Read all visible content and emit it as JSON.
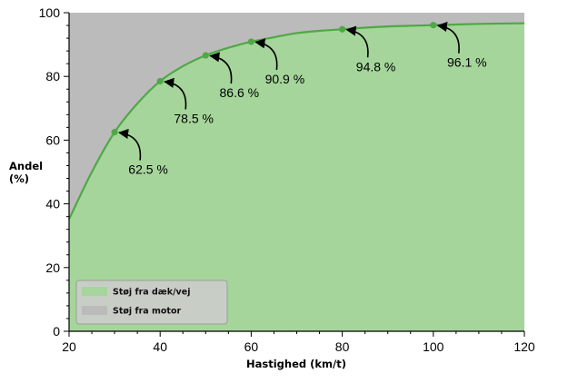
{
  "chart_data": {
    "type": "area",
    "title": "",
    "xlabel": "Hastighed (km/t)",
    "ylabel_lines": [
      "Andel",
      "(%)"
    ],
    "xlim": [
      20,
      120
    ],
    "ylim": [
      0,
      100
    ],
    "x_ticks": [
      20,
      40,
      60,
      80,
      100,
      120
    ],
    "y_ticks": [
      0,
      20,
      40,
      60,
      80,
      100
    ],
    "grid": false,
    "legend_position": "bottom-left",
    "colors": {
      "tire_fill": "#a5d59b",
      "motor_fill": "#bcbbbc",
      "line": "#4fa845",
      "point": "#4fa845",
      "arrow": "#000000",
      "legend_bg": "#c8cdc6",
      "legend_border": "#9aa096"
    },
    "series": [
      {
        "name": "Støj fra dæk/vej",
        "x": [
          20,
          25,
          30,
          35,
          40,
          45,
          50,
          55,
          60,
          65,
          70,
          75,
          80,
          85,
          90,
          95,
          100,
          105,
          110,
          115,
          120
        ],
        "y": [
          35.2,
          50.0,
          62.5,
          71.5,
          78.5,
          83.2,
          86.6,
          89.0,
          90.9,
          92.3,
          93.6,
          94.3,
          94.8,
          95.3,
          95.7,
          95.9,
          96.1,
          96.3,
          96.5,
          96.6,
          96.7
        ],
        "color": "#a5d59b"
      },
      {
        "name": "Støj fra motor",
        "color": "#bcbbbc"
      }
    ],
    "points": [
      {
        "x": 30,
        "y": 62.5,
        "label": "62.5 %"
      },
      {
        "x": 40,
        "y": 78.5,
        "label": "78.5 %"
      },
      {
        "x": 50,
        "y": 86.6,
        "label": "86.6 %"
      },
      {
        "x": 60,
        "y": 90.9,
        "label": "90.9 %"
      },
      {
        "x": 80,
        "y": 94.8,
        "label": "94.8 %"
      },
      {
        "x": 100,
        "y": 96.1,
        "label": "96.1 %"
      }
    ]
  }
}
